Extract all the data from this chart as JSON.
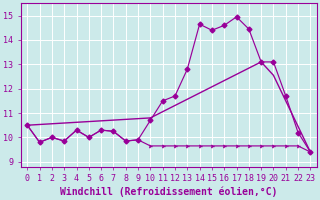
{
  "xlabel": "Windchill (Refroidissement éolien,°C)",
  "bg_color": "#cceaea",
  "line_color": "#990099",
  "grid_color": "#aadddd",
  "xlim": [
    -0.5,
    23.5
  ],
  "ylim": [
    8.8,
    15.5
  ],
  "yticks": [
    9,
    10,
    11,
    12,
    13,
    14,
    15
  ],
  "xticks": [
    0,
    1,
    2,
    3,
    4,
    5,
    6,
    7,
    8,
    9,
    10,
    11,
    12,
    13,
    14,
    15,
    16,
    17,
    18,
    19,
    20,
    21,
    22,
    23
  ],
  "curve_main_x": [
    0,
    1,
    2,
    3,
    4,
    5,
    6,
    7,
    8,
    9,
    10,
    11,
    12,
    13,
    14,
    15,
    16,
    17,
    18,
    19,
    20,
    21,
    22,
    23
  ],
  "curve_main_y": [
    10.5,
    9.8,
    10.0,
    9.85,
    10.3,
    10.0,
    10.3,
    10.25,
    9.85,
    9.9,
    10.7,
    11.5,
    11.7,
    12.8,
    14.65,
    14.4,
    14.6,
    14.95,
    14.45,
    13.1,
    13.1,
    11.7,
    10.2,
    9.4
  ],
  "curve_flat_x": [
    0,
    1,
    2,
    3,
    4,
    5,
    6,
    7,
    8,
    9,
    10,
    11,
    12,
    13,
    14,
    15,
    16,
    17,
    18,
    19,
    20,
    21,
    22,
    23
  ],
  "curve_flat_y": [
    10.5,
    9.8,
    10.0,
    9.85,
    10.3,
    10.0,
    10.3,
    10.25,
    9.85,
    9.9,
    9.65,
    9.65,
    9.65,
    9.65,
    9.65,
    9.65,
    9.65,
    9.65,
    9.65,
    9.65,
    9.65,
    9.65,
    9.65,
    9.4
  ],
  "curve_diag_x": [
    0,
    10,
    19,
    20,
    23
  ],
  "curve_diag_y": [
    10.5,
    10.8,
    13.1,
    12.55,
    9.4
  ],
  "font_color": "#990099",
  "tick_fontsize": 6.0,
  "label_fontsize": 7.0
}
